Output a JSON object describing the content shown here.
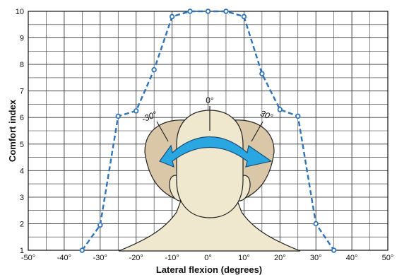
{
  "chart_data": {
    "type": "line",
    "xlabel": "Lateral flexion (degrees)",
    "ylabel": "Comfort index",
    "xlim": [
      -50,
      50
    ],
    "ylim": [
      1,
      10
    ],
    "x_ticks": [
      "-50°",
      "-40°",
      "-30°",
      "-20°",
      "-10°",
      "0°",
      "10°",
      "20°",
      "30°",
      "40°",
      "50°"
    ],
    "y_ticks": [
      "1",
      "2",
      "3",
      "4",
      "5",
      "6",
      "7",
      "8",
      "9",
      "10"
    ],
    "grid": true,
    "series": [
      {
        "style": "dashed",
        "marker": "open-circle",
        "color": "#2f73b8",
        "x": [
          -35,
          -30,
          -25,
          -20,
          -15,
          -10,
          -5,
          0,
          5,
          10,
          15,
          20,
          25,
          30,
          35
        ],
        "y": [
          1,
          1.95,
          6.05,
          6.25,
          7.8,
          9.8,
          10,
          10,
          10,
          9.8,
          7.65,
          6.3,
          6.05,
          2,
          1
        ]
      }
    ],
    "annotations": [
      {
        "text": "-30°"
      },
      {
        "text": "0°"
      },
      {
        "text": "30°"
      }
    ],
    "colors": {
      "head_fill": "#efe8cf",
      "head_side_fill": "#d9c7a8",
      "arrow_fill": "#2aa7e0",
      "grid": "#333333"
    }
  }
}
